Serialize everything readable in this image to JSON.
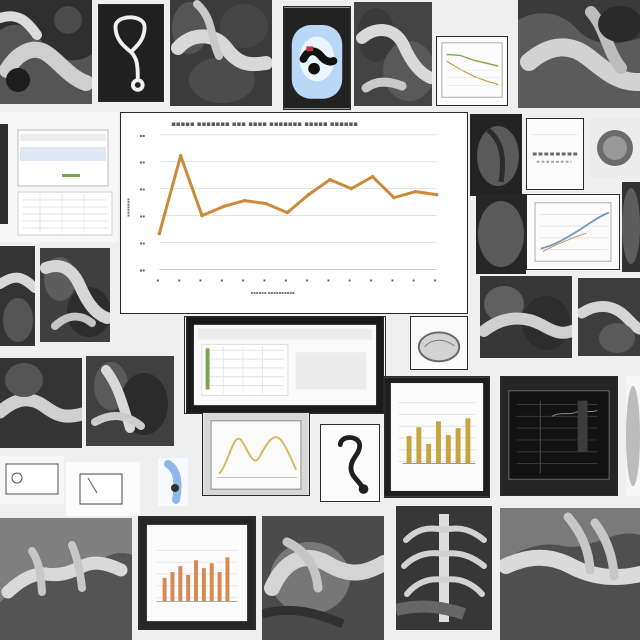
{
  "page": {
    "background": "#efefef"
  },
  "palette": {
    "specimen_dark": "#2f2f2f",
    "specimen_mid": "#5f5f5f",
    "specimen_light": "#d7d7d7",
    "chart_line": "#c98a3a",
    "chart_bar": "#d58a52",
    "chart_grid": "#dddddd",
    "blue_accent": "#8fb7ea",
    "green_accent": "#7aa34a"
  },
  "chart_data": {
    "type": "line",
    "x": [
      1,
      2,
      3,
      4,
      5,
      6,
      7,
      8,
      9,
      10,
      11,
      12,
      13,
      14
    ],
    "series": [
      {
        "values": [
          62,
          88,
          68,
          71,
          73,
          72,
          69,
          75,
          80,
          77,
          81,
          74,
          76,
          75
        ]
      }
    ],
    "ylim": [
      50,
      95
    ],
    "grid": true,
    "legend": "none"
  },
  "tiles": [
    {
      "kind": "specimen"
    },
    {
      "kind": "instrument"
    },
    {
      "kind": "specimen"
    },
    {
      "kind": "figure"
    },
    {
      "kind": "specimen"
    },
    {
      "kind": "chart"
    },
    {
      "kind": "specimen"
    },
    {
      "kind": "chart"
    },
    {
      "kind": "specimen"
    },
    {
      "kind": "specimen"
    },
    {
      "kind": "specimen"
    },
    {
      "kind": "chart"
    },
    {
      "kind": "specimen"
    },
    {
      "kind": "specimen"
    },
    {
      "kind": "screen"
    },
    {
      "kind": "specimen"
    },
    {
      "kind": "chart"
    },
    {
      "kind": "chart"
    },
    {
      "kind": "specimen"
    },
    {
      "kind": "specimen"
    },
    {
      "kind": "specimen"
    },
    {
      "kind": "specimen"
    },
    {
      "kind": "specimen"
    }
  ]
}
